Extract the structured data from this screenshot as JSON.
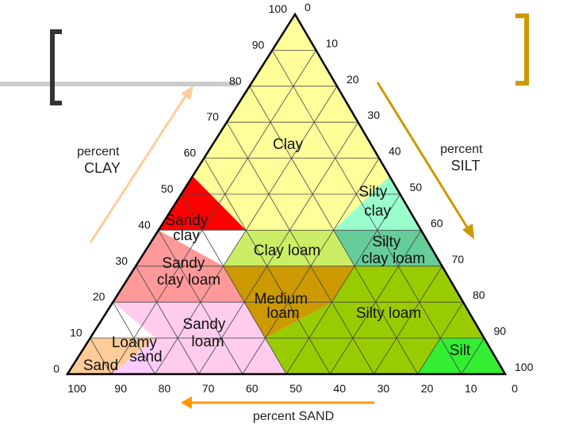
{
  "axes": {
    "clay": {
      "line1": "percent",
      "line2": "CLAY"
    },
    "silt": {
      "line1": "percent",
      "line2": "SILT"
    },
    "sand": {
      "label": "percent SAND"
    }
  },
  "ticks": {
    "clay_left": [
      "0",
      "10",
      "20",
      "30",
      "40",
      "50",
      "60",
      "70",
      "80",
      "90",
      "100"
    ],
    "silt_right": [
      "0",
      "10",
      "20",
      "30",
      "40",
      "50",
      "60",
      "70",
      "80",
      "90",
      "100"
    ],
    "sand_bottom": [
      "100",
      "90",
      "80",
      "70",
      "60",
      "50",
      "40",
      "30",
      "20",
      "10",
      "0"
    ]
  },
  "regions": {
    "clay": {
      "lines": [
        "Clay"
      ],
      "color": "#ffff99"
    },
    "silty_clay": {
      "lines": [
        "Silty",
        "clay"
      ],
      "color": "#99ffcc"
    },
    "sandy_clay": {
      "lines": [
        "Sandy",
        "clay"
      ],
      "color": "#ff0000"
    },
    "clay_loam": {
      "lines": [
        "Clay loam"
      ],
      "color": "#ccee66"
    },
    "silty_clay_loam": {
      "lines": [
        "Silty",
        "clay loam"
      ],
      "color": "#66cc99"
    },
    "sandy_clay_loam": {
      "lines": [
        "Sandy",
        "clay loam"
      ],
      "color": "#ff9999"
    },
    "medium_loam": {
      "lines": [
        "Medium",
        "loam"
      ],
      "color": "#cc9900"
    },
    "silty_loam": {
      "lines": [
        "Silty loam"
      ],
      "color": "#99cc00"
    },
    "sandy_loam": {
      "lines": [
        "Sandy",
        "loam"
      ],
      "color": "#ffccee"
    },
    "loamy_sand": {
      "lines": [
        "Loamy",
        "sand"
      ],
      "color": "#ffccff"
    },
    "sand": {
      "lines": [
        "Sand"
      ],
      "color": "#ffcc99"
    },
    "silt": {
      "lines": [
        "Silt"
      ],
      "color": "#33ee33"
    }
  },
  "colors": {
    "clay_arrow": "#ffcc99",
    "silt_arrow": "#cc9900",
    "sand_arrow": "#ff9900",
    "bracket": "#333333",
    "bracket_right": "#cc9900",
    "grid": "#444444",
    "outline": "#000000"
  }
}
